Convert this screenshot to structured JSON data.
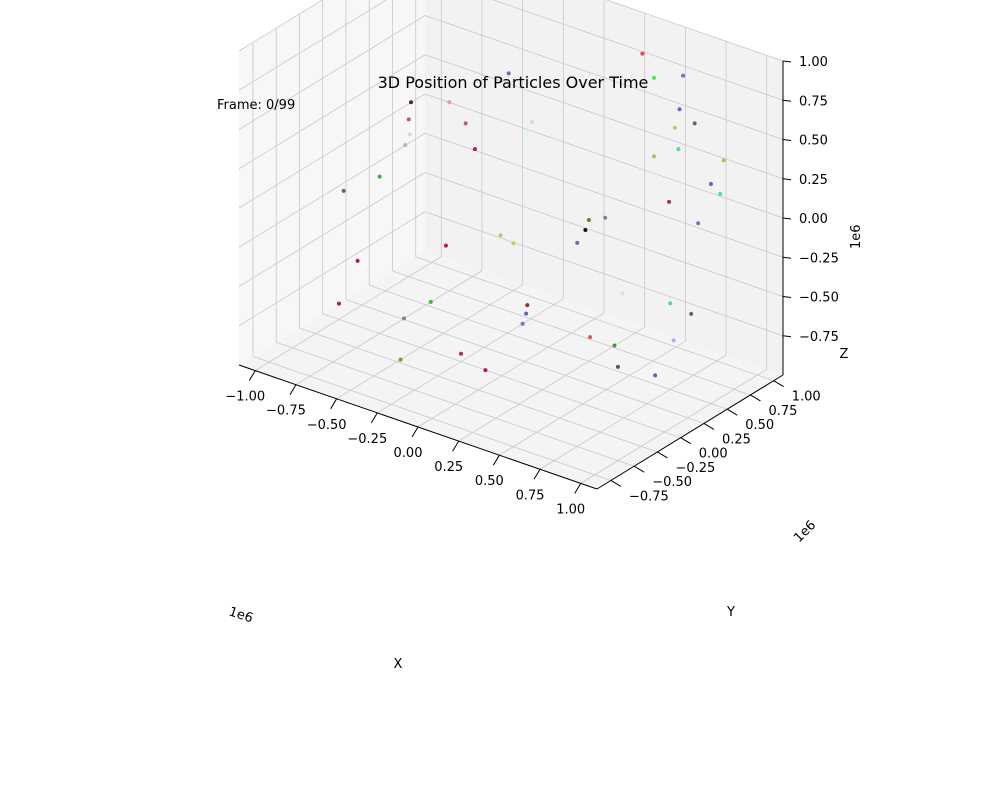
{
  "chart_data": {
    "type": "scatter",
    "title": "3D Position of Particles Over Time",
    "annotation": "Frame: 0/99",
    "xlabel": "X",
    "ylabel": "Y",
    "zlabel": "Z",
    "x_multiplier": "1e6",
    "y_multiplier": "1e6",
    "z_multiplier": "1e6",
    "xlim": [
      -1.1,
      1.1
    ],
    "ylim": [
      -0.9,
      1.1
    ],
    "zlim": [
      -1.0,
      1.0
    ],
    "x_ticks": [
      -1.0,
      -0.75,
      -0.5,
      -0.25,
      0.0,
      0.25,
      0.5,
      0.75,
      1.0
    ],
    "y_ticks": [
      -0.75,
      -0.5,
      -0.25,
      0.0,
      0.25,
      0.5,
      0.75,
      1.0
    ],
    "z_ticks": [
      -0.75,
      -0.5,
      -0.25,
      0.0,
      0.25,
      0.5,
      0.75,
      1.0
    ],
    "x_tick_labels": [
      "−1.00",
      "−0.75",
      "−0.50",
      "−0.25",
      "0.00",
      "0.25",
      "0.50",
      "0.75",
      "1.00"
    ],
    "y_tick_labels": [
      "−0.75",
      "−0.50",
      "−0.25",
      "0.00",
      "0.25",
      "0.50",
      "0.75",
      "1.00"
    ],
    "z_tick_labels": [
      "−0.75",
      "−0.50",
      "−0.25",
      "0.00",
      "0.25",
      "0.50",
      "0.75",
      "1.00"
    ],
    "grid": true,
    "units_scale": 1000000,
    "points": [
      {
        "x": 0.35,
        "y": 0.9,
        "z": 0.85,
        "color": "#d9534f"
      },
      {
        "x": 0.45,
        "y": 0.85,
        "z": 0.75,
        "color": "#55dd66"
      },
      {
        "x": 0.6,
        "y": 0.9,
        "z": 0.8,
        "color": "#7a6fcf"
      },
      {
        "x": 0.55,
        "y": 0.95,
        "z": 0.55,
        "color": "#7755cc"
      },
      {
        "x": 0.7,
        "y": 0.85,
        "z": 0.55,
        "color": "#666655"
      },
      {
        "x": 0.55,
        "y": 0.9,
        "z": 0.45,
        "color": "#ccbb77"
      },
      {
        "x": 0.6,
        "y": 0.85,
        "z": 0.35,
        "color": "#55dd88"
      },
      {
        "x": 0.85,
        "y": 0.9,
        "z": 0.35,
        "color": "#bbbb66"
      },
      {
        "x": 0.8,
        "y": 0.85,
        "z": 0.2,
        "color": "#7755cc"
      },
      {
        "x": 0.8,
        "y": 0.95,
        "z": 0.1,
        "color": "#55dd88"
      },
      {
        "x": 0.45,
        "y": 0.85,
        "z": 0.25,
        "color": "#bbbb66"
      },
      {
        "x": 0.6,
        "y": 0.75,
        "z": 0.05,
        "color": "#aa3355"
      },
      {
        "x": 0.75,
        "y": 0.8,
        "z": -0.05,
        "color": "#7a6fcf"
      },
      {
        "x": -0.3,
        "y": 0.6,
        "z": 0.6,
        "color": "#6a6acc"
      },
      {
        "x": -0.1,
        "y": 0.5,
        "z": 0.4,
        "color": "#eeccdd"
      },
      {
        "x": -0.1,
        "y": 0.45,
        "z": 0.35,
        "color": "#ccffee"
      },
      {
        "x": -0.45,
        "y": 0.4,
        "z": 0.3,
        "color": "#cc5566"
      },
      {
        "x": -0.55,
        "y": 0.4,
        "z": 0.4,
        "color": "#ee99aa"
      },
      {
        "x": -0.7,
        "y": 0.25,
        "z": 0.4,
        "color": "#552233"
      },
      {
        "x": -0.8,
        "y": 0.4,
        "z": 0.2,
        "color": "#cc5566"
      },
      {
        "x": -0.45,
        "y": 0.5,
        "z": 0.1,
        "color": "#aa2244"
      },
      {
        "x": -0.85,
        "y": 0.5,
        "z": 0.05,
        "color": "#ccdddd"
      },
      {
        "x": -0.85,
        "y": 0.45,
        "z": 0.0,
        "color": "#aabbaa"
      },
      {
        "x": 0.35,
        "y": 0.5,
        "z": -0.05,
        "color": "#888888"
      },
      {
        "x": 0.25,
        "y": 0.5,
        "z": -0.1,
        "color": "#558833"
      },
      {
        "x": 0.2,
        "y": 0.55,
        "z": -0.2,
        "color": "#111111"
      },
      {
        "x": 0.15,
        "y": 0.55,
        "z": -0.3,
        "color": "#6666bb"
      },
      {
        "x": -0.95,
        "y": 0.35,
        "z": -0.2,
        "color": "#44aa44"
      },
      {
        "x": -1.0,
        "y": 0.05,
        "z": -0.2,
        "color": "#666666"
      },
      {
        "x": -0.35,
        "y": 0.6,
        "z": -0.45,
        "color": "#ccbb77"
      },
      {
        "x": -0.3,
        "y": 0.65,
        "z": -0.5,
        "color": "#bbdd44"
      },
      {
        "x": -0.6,
        "y": 0.45,
        "z": -0.55,
        "color": "#aa2244"
      },
      {
        "x": 0.4,
        "y": 0.6,
        "z": -0.55,
        "color": "#dddddd"
      },
      {
        "x": 0.55,
        "y": 0.85,
        "z": -0.65,
        "color": "#55dd88"
      },
      {
        "x": 0.65,
        "y": 0.9,
        "z": -0.7,
        "color": "#666666"
      },
      {
        "x": -1.0,
        "y": 0.2,
        "z": -0.7,
        "color": "#aa2244"
      },
      {
        "x": -0.1,
        "y": 0.45,
        "z": -0.75,
        "color": "#aa2244"
      },
      {
        "x": 0.6,
        "y": 0.8,
        "z": -0.85,
        "color": "#bbaaee"
      },
      {
        "x": -0.55,
        "y": 0.2,
        "z": -0.8,
        "color": "#55aa44"
      },
      {
        "x": -0.05,
        "y": 0.35,
        "z": -0.75,
        "color": "#7755cc"
      },
      {
        "x": -0.1,
        "y": 0.4,
        "z": -0.85,
        "color": "#8866cc"
      },
      {
        "x": 0.2,
        "y": 0.6,
        "z": -0.9,
        "color": "#dd5555"
      },
      {
        "x": 0.35,
        "y": 0.6,
        "z": -0.9,
        "color": "#449944"
      },
      {
        "x": -1.0,
        "y": 0.0,
        "z": -0.9,
        "color": "#aa2244"
      },
      {
        "x": -0.6,
        "y": 0.0,
        "z": -0.85,
        "color": "#888877"
      },
      {
        "x": 0.4,
        "y": 0.55,
        "z": -1.0,
        "color": "#555555"
      },
      {
        "x": 0.6,
        "y": 0.6,
        "z": -1.0,
        "color": "#6655cc"
      },
      {
        "x": -0.25,
        "y": 0.0,
        "z": -0.95,
        "color": "#aa3344"
      },
      {
        "x": -0.1,
        "y": 0.0,
        "z": -1.0,
        "color": "#aa2244"
      },
      {
        "x": -0.45,
        "y": -0.3,
        "z": -0.95,
        "color": "#889922"
      }
    ]
  }
}
